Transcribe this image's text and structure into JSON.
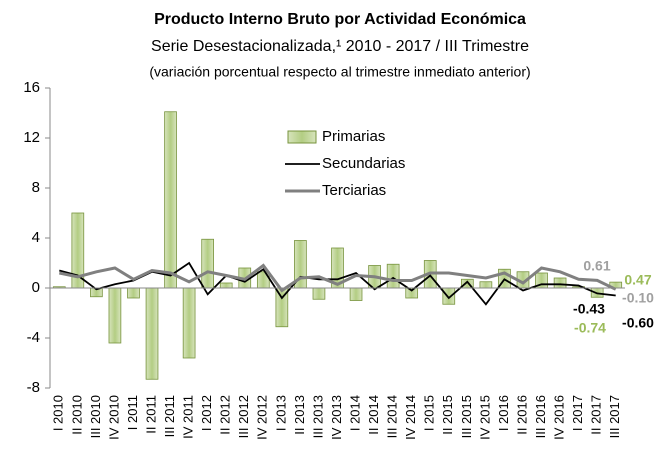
{
  "chart_data": {
    "type": "bar_line",
    "title": "Producto Interno Bruto por Actividad Económica",
    "subtitle": [
      "Serie Desestacionalizada,¹  2010 - 2017 / III Trimestre",
      "(variación porcentual respecto al trimestre inmediato anterior)"
    ],
    "categories": [
      "I 2010",
      "II 2010",
      "III 2010",
      "IV 2010",
      "I 2011",
      "II 2011",
      "III 2011",
      "IV 2011",
      "I 2012",
      "II 2012",
      "III 2012",
      "IV 2012",
      "I 2013",
      "II 2013",
      "III 2013",
      "IV 2013",
      "I 2014",
      "II 2014",
      "III 2014",
      "IV 2014",
      "I 2015",
      "II 2015",
      "III 2015",
      "IV 2015",
      "I 2016",
      "II 2016",
      "III 2016",
      "IV 2016",
      "I 2017",
      "II 2017",
      "III 2017"
    ],
    "series": [
      {
        "name": "Primarias",
        "kind": "bar",
        "color": "#c3d69b",
        "edge": "#77933c",
        "label_color": "#9bbb59",
        "values": [
          0.1,
          6.0,
          -0.7,
          -4.4,
          -0.8,
          -7.3,
          14.1,
          -5.6,
          3.9,
          0.4,
          1.6,
          1.3,
          -3.1,
          3.8,
          -0.9,
          3.2,
          -1.0,
          1.8,
          1.9,
          -0.8,
          2.2,
          -1.3,
          0.7,
          0.5,
          1.5,
          1.3,
          1.2,
          0.8,
          0.1,
          -0.74,
          0.47
        ],
        "value_labels": [
          null,
          null,
          null,
          null,
          null,
          null,
          null,
          null,
          null,
          null,
          null,
          null,
          null,
          null,
          null,
          null,
          null,
          null,
          null,
          null,
          null,
          null,
          null,
          null,
          null,
          null,
          null,
          null,
          null,
          "-0.74",
          "0.47"
        ]
      },
      {
        "name": "Secundarias",
        "kind": "line",
        "color": "#000000",
        "label_color": "#000000",
        "values": [
          1.4,
          1.0,
          -0.1,
          0.3,
          0.6,
          1.3,
          1.0,
          2.0,
          -0.5,
          1.0,
          0.5,
          1.5,
          -0.8,
          0.9,
          0.7,
          0.7,
          1.2,
          -0.1,
          0.8,
          -0.2,
          1.0,
          -0.8,
          0.5,
          -1.3,
          0.7,
          -0.2,
          0.3,
          0.3,
          0.2,
          -0.43,
          -0.6
        ],
        "value_labels": [
          null,
          null,
          null,
          null,
          null,
          null,
          null,
          null,
          null,
          null,
          null,
          null,
          null,
          null,
          null,
          null,
          null,
          null,
          null,
          null,
          null,
          null,
          null,
          null,
          null,
          null,
          null,
          null,
          null,
          "-0.43",
          "-0.60"
        ]
      },
      {
        "name": "Terciarias",
        "kind": "line",
        "color": "#808080",
        "label_color": "#a0a0a0",
        "values": [
          1.2,
          0.9,
          1.3,
          1.6,
          0.7,
          1.4,
          1.2,
          0.5,
          1.3,
          1.0,
          0.7,
          1.8,
          -0.2,
          0.8,
          0.9,
          0.3,
          1.0,
          0.9,
          0.6,
          0.6,
          1.2,
          1.2,
          1.0,
          0.8,
          1.2,
          0.4,
          1.6,
          1.3,
          0.7,
          0.61,
          -0.1
        ],
        "value_labels": [
          null,
          null,
          null,
          null,
          null,
          null,
          null,
          null,
          null,
          null,
          null,
          null,
          null,
          null,
          null,
          null,
          null,
          null,
          null,
          null,
          null,
          null,
          null,
          null,
          null,
          null,
          null,
          null,
          null,
          "0.61",
          "-0.10"
        ]
      }
    ],
    "ylim": [
      -8,
      16
    ],
    "yticks": [
      16,
      12,
      8,
      4,
      0,
      -4,
      -8
    ],
    "grid": false
  }
}
